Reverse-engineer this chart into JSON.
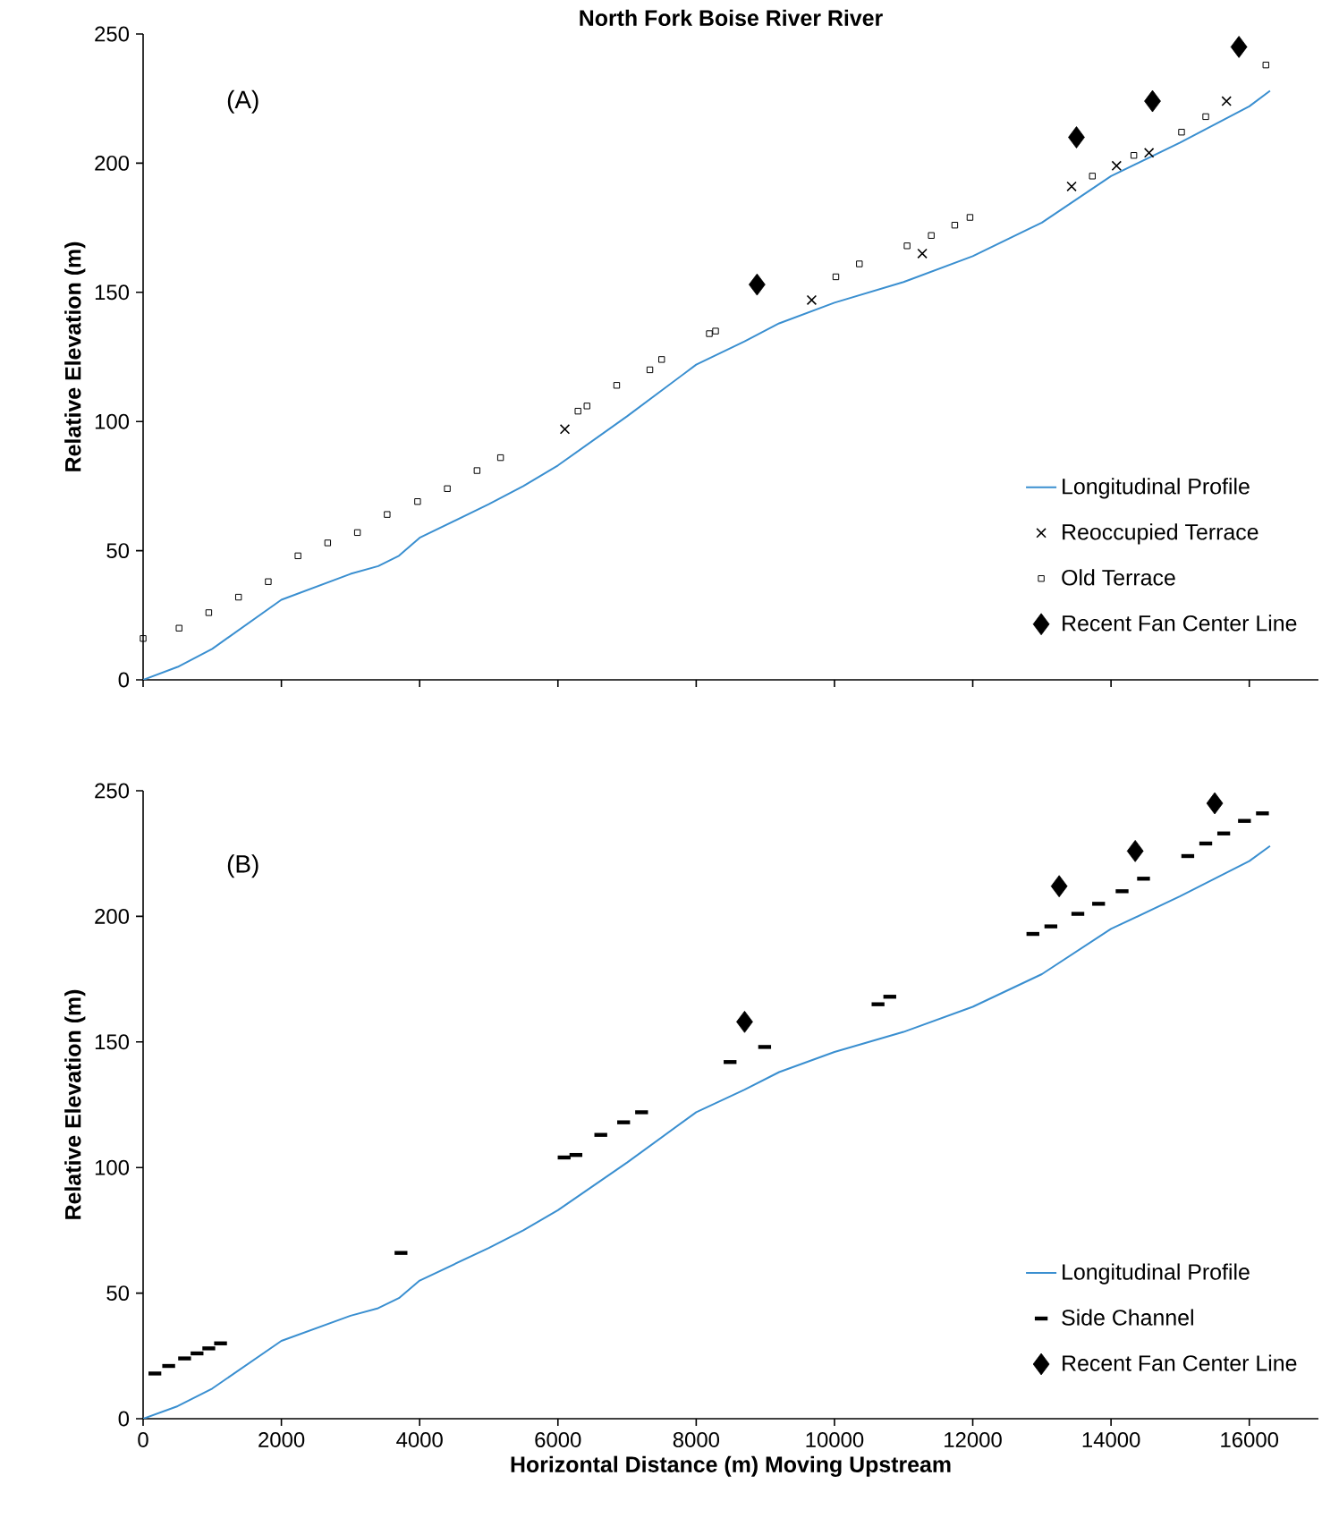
{
  "chart_data": [
    {
      "type": "scatter",
      "title": "North Fork Boise River River",
      "ylabel": "Relative Elevation (m)",
      "annotations": [
        "(A)"
      ],
      "xlim": [
        0,
        17000
      ],
      "xticks": [
        0,
        2000,
        4000,
        6000,
        8000,
        10000,
        12000,
        14000,
        16000
      ],
      "ylim": [
        0,
        250
      ],
      "yticks": [
        0,
        50,
        100,
        150,
        200,
        250
      ],
      "tick_labels": "y",
      "legend": "bottom right",
      "series": [
        {
          "name": "Longitudinal Profile",
          "type": "line",
          "color": "#3a8fd0",
          "line_style": "solid",
          "marker": "none",
          "x": [
            0,
            500,
            1000,
            2000,
            3000,
            3400,
            3700,
            4000,
            5000,
            5500,
            6000,
            7000,
            8000,
            8700,
            9200,
            10000,
            11000,
            12000,
            13000,
            14000,
            15000,
            16000,
            16300
          ],
          "values": [
            0,
            5,
            12,
            31,
            41,
            44,
            48,
            55,
            68,
            75,
            83,
            102,
            122,
            131,
            138,
            146,
            154,
            164,
            177,
            195,
            208,
            222,
            228
          ]
        },
        {
          "name": "Reoccupied Terrace",
          "color": "#000000",
          "marker": "cross",
          "x": [
            6100,
            9670,
            11270,
            13430,
            14080,
            14550,
            15670
          ],
          "values": [
            97,
            147,
            165,
            191,
            199,
            204,
            224
          ]
        },
        {
          "name": "Old Terrace",
          "color": "#000000",
          "marker": "square",
          "x": [
            0,
            520,
            950,
            1380,
            1810,
            2240,
            2670,
            3100,
            3530,
            3970,
            4400,
            4830,
            5170,
            6290,
            6420,
            6850,
            7330,
            7500,
            8190,
            8280,
            10020,
            10360,
            11050,
            11400,
            11740,
            11960,
            13730,
            14330,
            15020,
            15370,
            16240
          ],
          "values": [
            16,
            20,
            26,
            32,
            38,
            48,
            53,
            57,
            64,
            69,
            74,
            81,
            86,
            104,
            106,
            114,
            120,
            124,
            134,
            135,
            156,
            161,
            168,
            172,
            176,
            179,
            195,
            203,
            212,
            218,
            238
          ]
        },
        {
          "name": "Recent Fan Center Line",
          "color": "#000000",
          "marker": "diamond",
          "x": [
            8880,
            13500,
            14600,
            15850
          ],
          "values": [
            153,
            210,
            224,
            245
          ]
        }
      ]
    },
    {
      "type": "scatter",
      "xlabel": "Horizontal Distance (m) Moving Upstream",
      "ylabel": "Relative Elevation (m)",
      "annotations": [
        "(B)"
      ],
      "xlim": [
        0,
        17000
      ],
      "xticks": [
        0,
        2000,
        4000,
        6000,
        8000,
        10000,
        12000,
        14000,
        16000
      ],
      "ylim": [
        0,
        250
      ],
      "yticks": [
        0,
        50,
        100,
        150,
        200,
        250
      ],
      "legend": "bottom right",
      "series": [
        {
          "name": "Longitudinal Profile",
          "type": "line",
          "color": "#3a8fd0",
          "line_style": "solid",
          "marker": "none",
          "x": [
            0,
            500,
            1000,
            2000,
            3000,
            3400,
            3700,
            4000,
            5000,
            5500,
            6000,
            7000,
            8000,
            8700,
            9200,
            10000,
            11000,
            12000,
            13000,
            14000,
            15000,
            16000,
            16300
          ],
          "values": [
            0,
            5,
            12,
            31,
            41,
            44,
            48,
            55,
            68,
            75,
            83,
            102,
            122,
            131,
            138,
            146,
            154,
            164,
            177,
            195,
            208,
            222,
            228
          ]
        },
        {
          "name": "Side Channel",
          "color": "#000000",
          "x": [
            170,
            370,
            600,
            780,
            950,
            1120,
            3730,
            6090,
            6260,
            6620,
            6950,
            7210,
            8490,
            8990,
            10630,
            10800,
            12870,
            13130,
            13520,
            13820,
            14160,
            14470,
            15110,
            15370,
            15630,
            15930,
            16190
          ],
          "values": [
            18,
            21,
            24,
            26,
            28,
            30,
            66,
            104,
            105,
            113,
            118,
            122,
            142,
            148,
            165,
            168,
            193,
            196,
            201,
            205,
            210,
            215,
            224,
            229,
            233,
            238,
            241
          ]
        },
        {
          "name": "Recent Fan Center Line",
          "color": "#000000",
          "marker": "diamond",
          "x": [
            8700,
            13250,
            14350,
            15500
          ],
          "values": [
            158,
            212,
            226,
            245
          ]
        }
      ]
    }
  ]
}
